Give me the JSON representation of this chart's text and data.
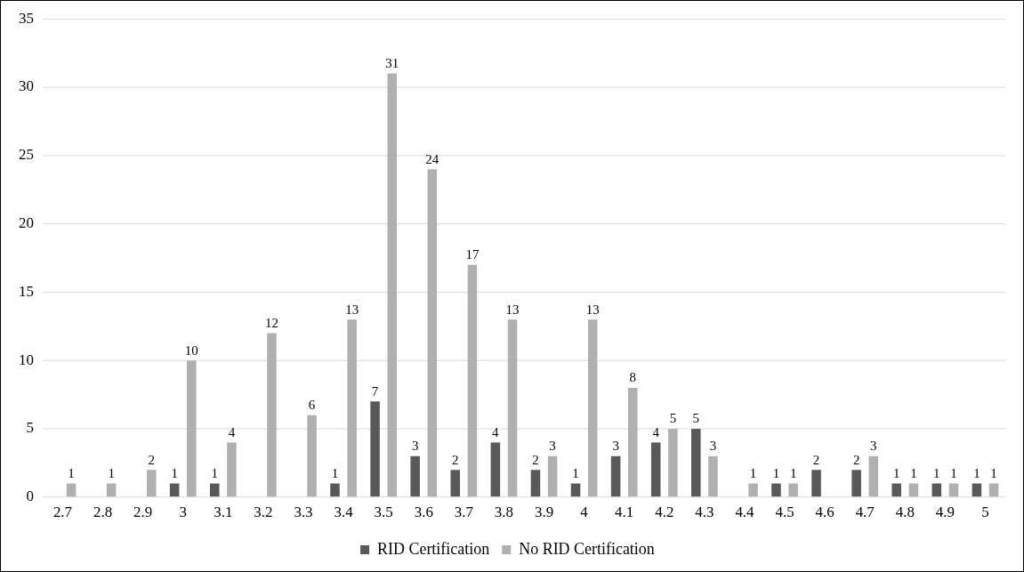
{
  "chart_data": {
    "type": "bar",
    "categories": [
      "2.7",
      "2.8",
      "2.9",
      "3",
      "3.1",
      "3.2",
      "3.3",
      "3.4",
      "3.5",
      "3.6",
      "3.7",
      "3.8",
      "3.9",
      "4",
      "4.1",
      "4.2",
      "4.3",
      "4.4",
      "4.5",
      "4.6",
      "4.7",
      "4.8",
      "4.9",
      "5"
    ],
    "series": [
      {
        "name": "RID Certification",
        "color": "#595959",
        "values": [
          null,
          null,
          null,
          1,
          1,
          null,
          null,
          1,
          7,
          3,
          2,
          4,
          2,
          1,
          3,
          4,
          5,
          null,
          1,
          2,
          2,
          1,
          1,
          1
        ]
      },
      {
        "name": "No RID Certification",
        "color": "#b0b0b0",
        "values": [
          1,
          1,
          2,
          10,
          4,
          12,
          6,
          13,
          31,
          24,
          17,
          13,
          3,
          13,
          8,
          5,
          3,
          1,
          1,
          null,
          3,
          1,
          1,
          1
        ]
      }
    ],
    "ylim": [
      0,
      35
    ],
    "yticks": [
      0,
      5,
      10,
      15,
      20,
      25,
      30,
      35
    ],
    "grid": "y",
    "legend": "bottom",
    "data_labels": true
  }
}
